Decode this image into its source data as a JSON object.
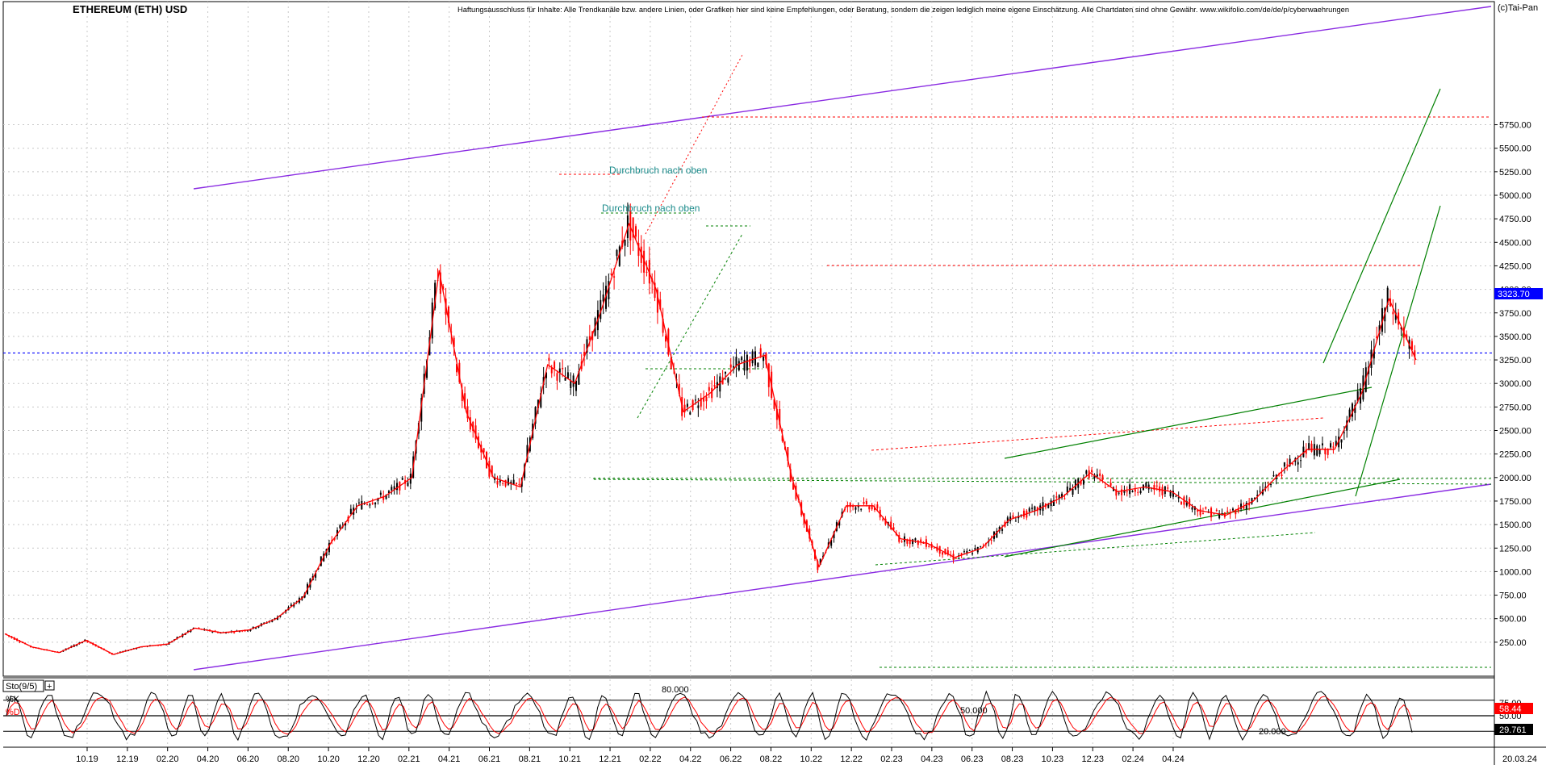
{
  "title": "ETHEREUM (ETH) USD",
  "copyright": "(c)Tai-Pan",
  "disclaimer": "Haftungsausschluss für Inhalte: Alle Trendkanäle bzw. andere Linien, oder Grafiken hier sind keine Empfehlungen, oder Beratung, sondern die zeigen lediglich meine eigene Einschätzung. Alle Chartdaten sind ohne Gewähr. www.wikifolio.com/de/de/p/cyberwaehrungen",
  "annotations": {
    "breakout1": "Durchbruch nach oben",
    "breakout2": "Durchbruch nach oben"
  },
  "current_price_label": "3323.70",
  "current_price": 3323.7,
  "date_label": "20.03.24",
  "colors": {
    "price_up": "#000000",
    "price_down": "#ff0000",
    "channel": "#8a2be2",
    "support": "#008000",
    "resistance": "#ff0000",
    "current": "#0000ff"
  },
  "chart_data": [
    {
      "type": "line",
      "name": "price",
      "x_ticks": [
        "10.19",
        "12.19",
        "02.20",
        "04.20",
        "06.20",
        "08.20",
        "10.20",
        "12.20",
        "02.21",
        "04.21",
        "06.21",
        "08.21",
        "10.21",
        "12.21",
        "02.22",
        "04.22",
        "06.22",
        "08.22",
        "10.22",
        "12.22",
        "02.23",
        "04.23",
        "06.23",
        "08.23",
        "10.23",
        "12.23",
        "02.24",
        "04.24"
      ],
      "y_ticks": [
        "250.00",
        "500.00",
        "750.00",
        "1000.00",
        "1250.00",
        "1500.00",
        "1750.00",
        "2000.00",
        "2250.00",
        "2500.00",
        "2750.00",
        "3000.00",
        "3250.00",
        "3500.00",
        "3750.00",
        "4000.00",
        "4250.00",
        "4500.00",
        "4750.00",
        "5000.00",
        "5250.00",
        "5500.00",
        "5750.00"
      ],
      "ylim": [
        0,
        5800
      ],
      "x": [
        "2019-08",
        "2019-10",
        "2019-12",
        "2020-02",
        "2020-03",
        "2020-04",
        "2020-06",
        "2020-08",
        "2020-09",
        "2020-10",
        "2020-11",
        "2020-12",
        "2021-01",
        "2021-02",
        "2021-03",
        "2021-04",
        "2021-05",
        "2021-05b",
        "2021-06",
        "2021-07",
        "2021-08",
        "2021-09",
        "2021-10",
        "2021-11",
        "2021-12",
        "2022-01",
        "2022-02",
        "2022-03",
        "2022-04",
        "2022-05",
        "2022-06",
        "2022-07",
        "2022-08",
        "2022-09",
        "2022-10",
        "2022-11",
        "2022-12",
        "2023-01",
        "2023-02",
        "2023-03",
        "2023-04",
        "2023-05",
        "2023-06",
        "2023-07",
        "2023-08",
        "2023-09",
        "2023-10",
        "2023-11",
        "2023-12",
        "2024-01",
        "2024-02",
        "2024-03",
        "2024-03b"
      ],
      "values": [
        340,
        200,
        140,
        270,
        120,
        200,
        230,
        400,
        350,
        380,
        500,
        730,
        1300,
        1700,
        1800,
        2000,
        4200,
        2700,
        2000,
        1900,
        3200,
        3000,
        3800,
        4700,
        4000,
        2700,
        2900,
        3200,
        3300,
        2000,
        1050,
        1700,
        1700,
        1350,
        1300,
        1150,
        1250,
        1550,
        1650,
        1800,
        2050,
        1850,
        1900,
        1850,
        1650,
        1600,
        1750,
        2050,
        2300,
        2300,
        2900,
        3900,
        3250
      ]
    },
    {
      "type": "line",
      "name": "Sto(9/5)",
      "series_labels": [
        "%K",
        "%D"
      ],
      "y_ticks": [
        "75.00",
        "50.00"
      ],
      "levels": [
        "80.000",
        "50.000",
        "20.000"
      ],
      "ylim": [
        0,
        100
      ],
      "last_k_label": "58.44",
      "last_d_label": "29.761",
      "last_k": 58.44,
      "last_d": 29.761
    }
  ]
}
